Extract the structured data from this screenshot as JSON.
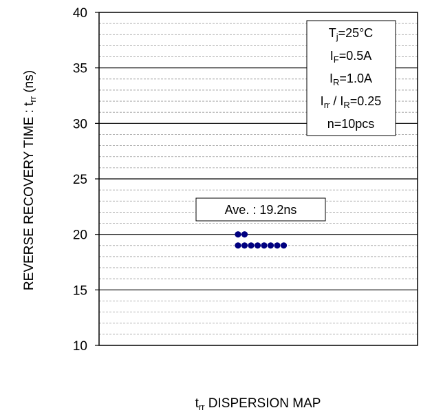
{
  "chart_data": {
    "type": "scatter",
    "title": "",
    "xlabel": {
      "main": "t",
      "sub": "rr",
      "rest": " DISPERSION MAP"
    },
    "ylabel": {
      "main": "REVERSE RECOVERY TIME : t",
      "sub": "rr",
      "rest": " (ns)"
    },
    "ylim": [
      10,
      40
    ],
    "yticks": [
      10,
      15,
      20,
      25,
      30,
      35,
      40
    ],
    "minor_grid_step": 1,
    "grid": true,
    "points_color": "#000080",
    "points": [
      {
        "x": 1,
        "y": 20
      },
      {
        "x": 2,
        "y": 20
      },
      {
        "x": 1,
        "y": 19
      },
      {
        "x": 2,
        "y": 19
      },
      {
        "x": 3,
        "y": 19
      },
      {
        "x": 4,
        "y": 19
      },
      {
        "x": 5,
        "y": 19
      },
      {
        "x": 6,
        "y": 19
      },
      {
        "x": 7,
        "y": 19
      },
      {
        "x": 8,
        "y": 19
      }
    ],
    "average_label": "Ave. : 19.2ns",
    "conditions": [
      {
        "main": "T",
        "sub": "j",
        "rest": "=25°C"
      },
      {
        "main": "I",
        "sub": "F",
        "rest": "=0.5A"
      },
      {
        "main": "I",
        "sub": "R",
        "rest": "=1.0A"
      },
      {
        "main": "I",
        "sub": "rr",
        "rest": " / I",
        "sub2": "R",
        "rest2": "=0.25"
      },
      {
        "main": "n=10pcs",
        "sub": "",
        "rest": ""
      }
    ],
    "legend_position": "top-right"
  }
}
